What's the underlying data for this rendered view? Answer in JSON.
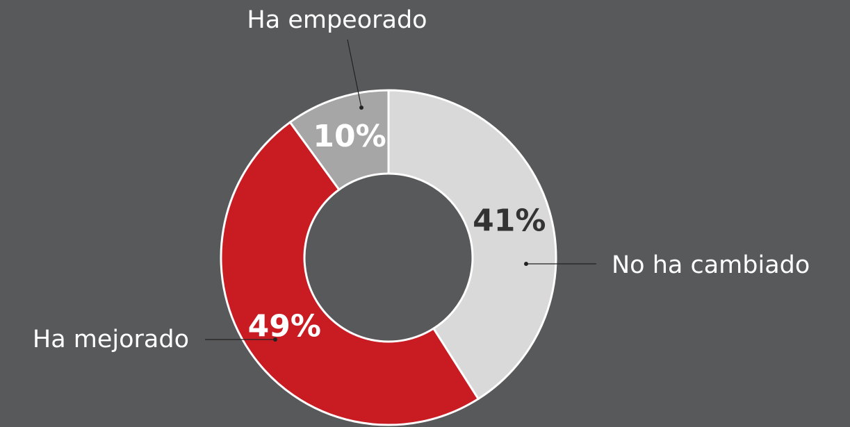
{
  "chart_data": {
    "type": "donut",
    "categories": [
      "No ha cambiado",
      "Ha mejorado",
      "Ha empeorado"
    ],
    "values": [
      41,
      49,
      10
    ],
    "value_labels": [
      "41%",
      "49%",
      "10%"
    ],
    "colors": [
      "#d9d9d9",
      "#c81b22",
      "#a6a6a6"
    ]
  }
}
